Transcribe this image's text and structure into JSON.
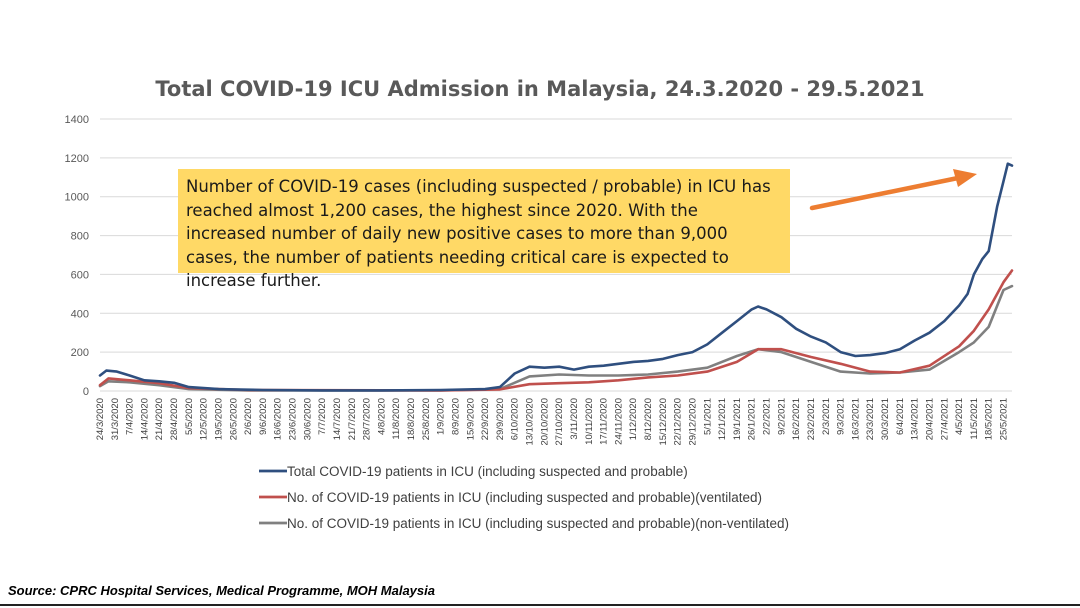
{
  "chart_data": {
    "type": "line",
    "title": "Total COVID-19 ICU Admission in Malaysia, 24.3.2020 - 29.5.2021",
    "ylim": [
      0,
      1400
    ],
    "yticks": [
      "0",
      "200",
      "400",
      "600",
      "800",
      "1000",
      "1200",
      "1400"
    ],
    "x_range": [
      "2020-03-24",
      "2021-05-29"
    ],
    "xtick_labels": [
      "24/3/2020",
      "31/3/2020",
      "7/4/2020",
      "14/4/2020",
      "21/4/2020",
      "28/4/2020",
      "5/5/2020",
      "12/5/2020",
      "19/5/2020",
      "26/5/2020",
      "2/6/2020",
      "9/6/2020",
      "16/6/2020",
      "23/6/2020",
      "30/6/2020",
      "7/7/2020",
      "14/7/2020",
      "21/7/2020",
      "28/7/2020",
      "4/8/2020",
      "11/8/2020",
      "18/8/2020",
      "25/8/2020",
      "1/9/2020",
      "8/9/2020",
      "15/9/2020",
      "22/9/2020",
      "29/9/2020",
      "6/10/2020",
      "13/10/2020",
      "20/10/2020",
      "27/10/2020",
      "3/11/2020",
      "10/11/2020",
      "17/11/2020",
      "24/11/2020",
      "1/12/2020",
      "8/12/2020",
      "15/12/2020",
      "22/12/2020",
      "29/12/2020",
      "5/1/2021",
      "12/1/2021",
      "19/1/2021",
      "26/1/2021",
      "2/2/2021",
      "9/2/2021",
      "16/2/2021",
      "23/2/2021",
      "2/3/2021",
      "9/3/2021",
      "16/3/2021",
      "23/3/2021",
      "30/3/2021",
      "6/4/2021",
      "13/4/2021",
      "20/4/2021",
      "27/4/2021",
      "4/5/2021",
      "11/5/2021",
      "18/5/2021",
      "25/5/2021"
    ],
    "grid": true,
    "legend_placement": "bottom",
    "series": [
      {
        "name": "Total COVID-19 patients in ICU (including suspected and probable)",
        "color": "#2f4f7f",
        "x": [
          "2020-03-24",
          "2020-03-27",
          "2020-04-01",
          "2020-04-07",
          "2020-04-14",
          "2020-04-21",
          "2020-04-28",
          "2020-05-05",
          "2020-05-12",
          "2020-05-19",
          "2020-05-26",
          "2020-06-09",
          "2020-07-07",
          "2020-08-04",
          "2020-09-01",
          "2020-09-22",
          "2020-09-29",
          "2020-10-06",
          "2020-10-13",
          "2020-10-20",
          "2020-10-27",
          "2020-11-03",
          "2020-11-10",
          "2020-11-17",
          "2020-11-24",
          "2020-12-01",
          "2020-12-08",
          "2020-12-15",
          "2020-12-22",
          "2020-12-29",
          "2021-01-05",
          "2021-01-12",
          "2021-01-19",
          "2021-01-26",
          "2021-01-29",
          "2021-02-02",
          "2021-02-09",
          "2021-02-16",
          "2021-02-23",
          "2021-03-02",
          "2021-03-09",
          "2021-03-16",
          "2021-03-23",
          "2021-03-30",
          "2021-04-06",
          "2021-04-13",
          "2021-04-20",
          "2021-04-27",
          "2021-05-04",
          "2021-05-08",
          "2021-05-11",
          "2021-05-15",
          "2021-05-18",
          "2021-05-22",
          "2021-05-25",
          "2021-05-27",
          "2021-05-29"
        ],
        "values": [
          80,
          105,
          100,
          80,
          55,
          50,
          42,
          20,
          15,
          10,
          8,
          5,
          3,
          3,
          5,
          10,
          20,
          90,
          125,
          120,
          125,
          110,
          125,
          130,
          140,
          150,
          155,
          165,
          185,
          200,
          240,
          300,
          360,
          420,
          435,
          420,
          380,
          320,
          280,
          250,
          200,
          180,
          185,
          195,
          215,
          260,
          300,
          360,
          440,
          500,
          600,
          680,
          720,
          950,
          1080,
          1170,
          1160
        ]
      },
      {
        "name": "No. of COVID-19 patients in ICU (including suspected and probable)(ventilated)",
        "color": "#c0504d",
        "x": [
          "2020-03-24",
          "2020-03-28",
          "2020-04-07",
          "2020-04-21",
          "2020-05-05",
          "2020-06-02",
          "2020-09-01",
          "2020-09-29",
          "2020-10-13",
          "2020-10-27",
          "2020-11-10",
          "2020-11-24",
          "2020-12-08",
          "2020-12-22",
          "2021-01-05",
          "2021-01-19",
          "2021-01-29",
          "2021-02-09",
          "2021-02-23",
          "2021-03-09",
          "2021-03-23",
          "2021-04-06",
          "2021-04-20",
          "2021-05-04",
          "2021-05-11",
          "2021-05-18",
          "2021-05-25",
          "2021-05-29"
        ],
        "values": [
          30,
          65,
          55,
          40,
          15,
          5,
          3,
          8,
          35,
          40,
          45,
          55,
          70,
          80,
          100,
          150,
          215,
          215,
          175,
          140,
          100,
          95,
          130,
          230,
          310,
          420,
          560,
          620
        ]
      },
      {
        "name": "No. of COVID-19 patients in ICU (including suspected and probable)(non-ventilated)",
        "color": "#808080",
        "x": [
          "2020-03-24",
          "2020-03-28",
          "2020-04-07",
          "2020-04-21",
          "2020-05-05",
          "2020-06-02",
          "2020-09-01",
          "2020-09-29",
          "2020-10-13",
          "2020-10-27",
          "2020-11-10",
          "2020-11-24",
          "2020-12-08",
          "2020-12-22",
          "2021-01-05",
          "2021-01-19",
          "2021-01-29",
          "2021-02-09",
          "2021-02-23",
          "2021-03-09",
          "2021-03-23",
          "2021-04-06",
          "2021-04-20",
          "2021-05-04",
          "2021-05-11",
          "2021-05-18",
          "2021-05-25",
          "2021-05-29"
        ],
        "values": [
          25,
          50,
          45,
          30,
          10,
          3,
          3,
          10,
          75,
          85,
          80,
          80,
          85,
          100,
          120,
          180,
          215,
          200,
          150,
          100,
          90,
          95,
          110,
          200,
          250,
          330,
          520,
          540
        ]
      }
    ]
  },
  "annotation": {
    "text": "Number of COVID-19 cases (including suspected / probable) in ICU has reached almost 1,200 cases, the highest since 2020. With the increased number of daily new positive cases to more than 9,000 cases, the number of patients needing critical care is expected to increase further.",
    "background": "#ffd966",
    "arrow_color": "#ed7d31"
  },
  "source": "Source: CPRC Hospital Services, Medical Programme, MOH Malaysia"
}
